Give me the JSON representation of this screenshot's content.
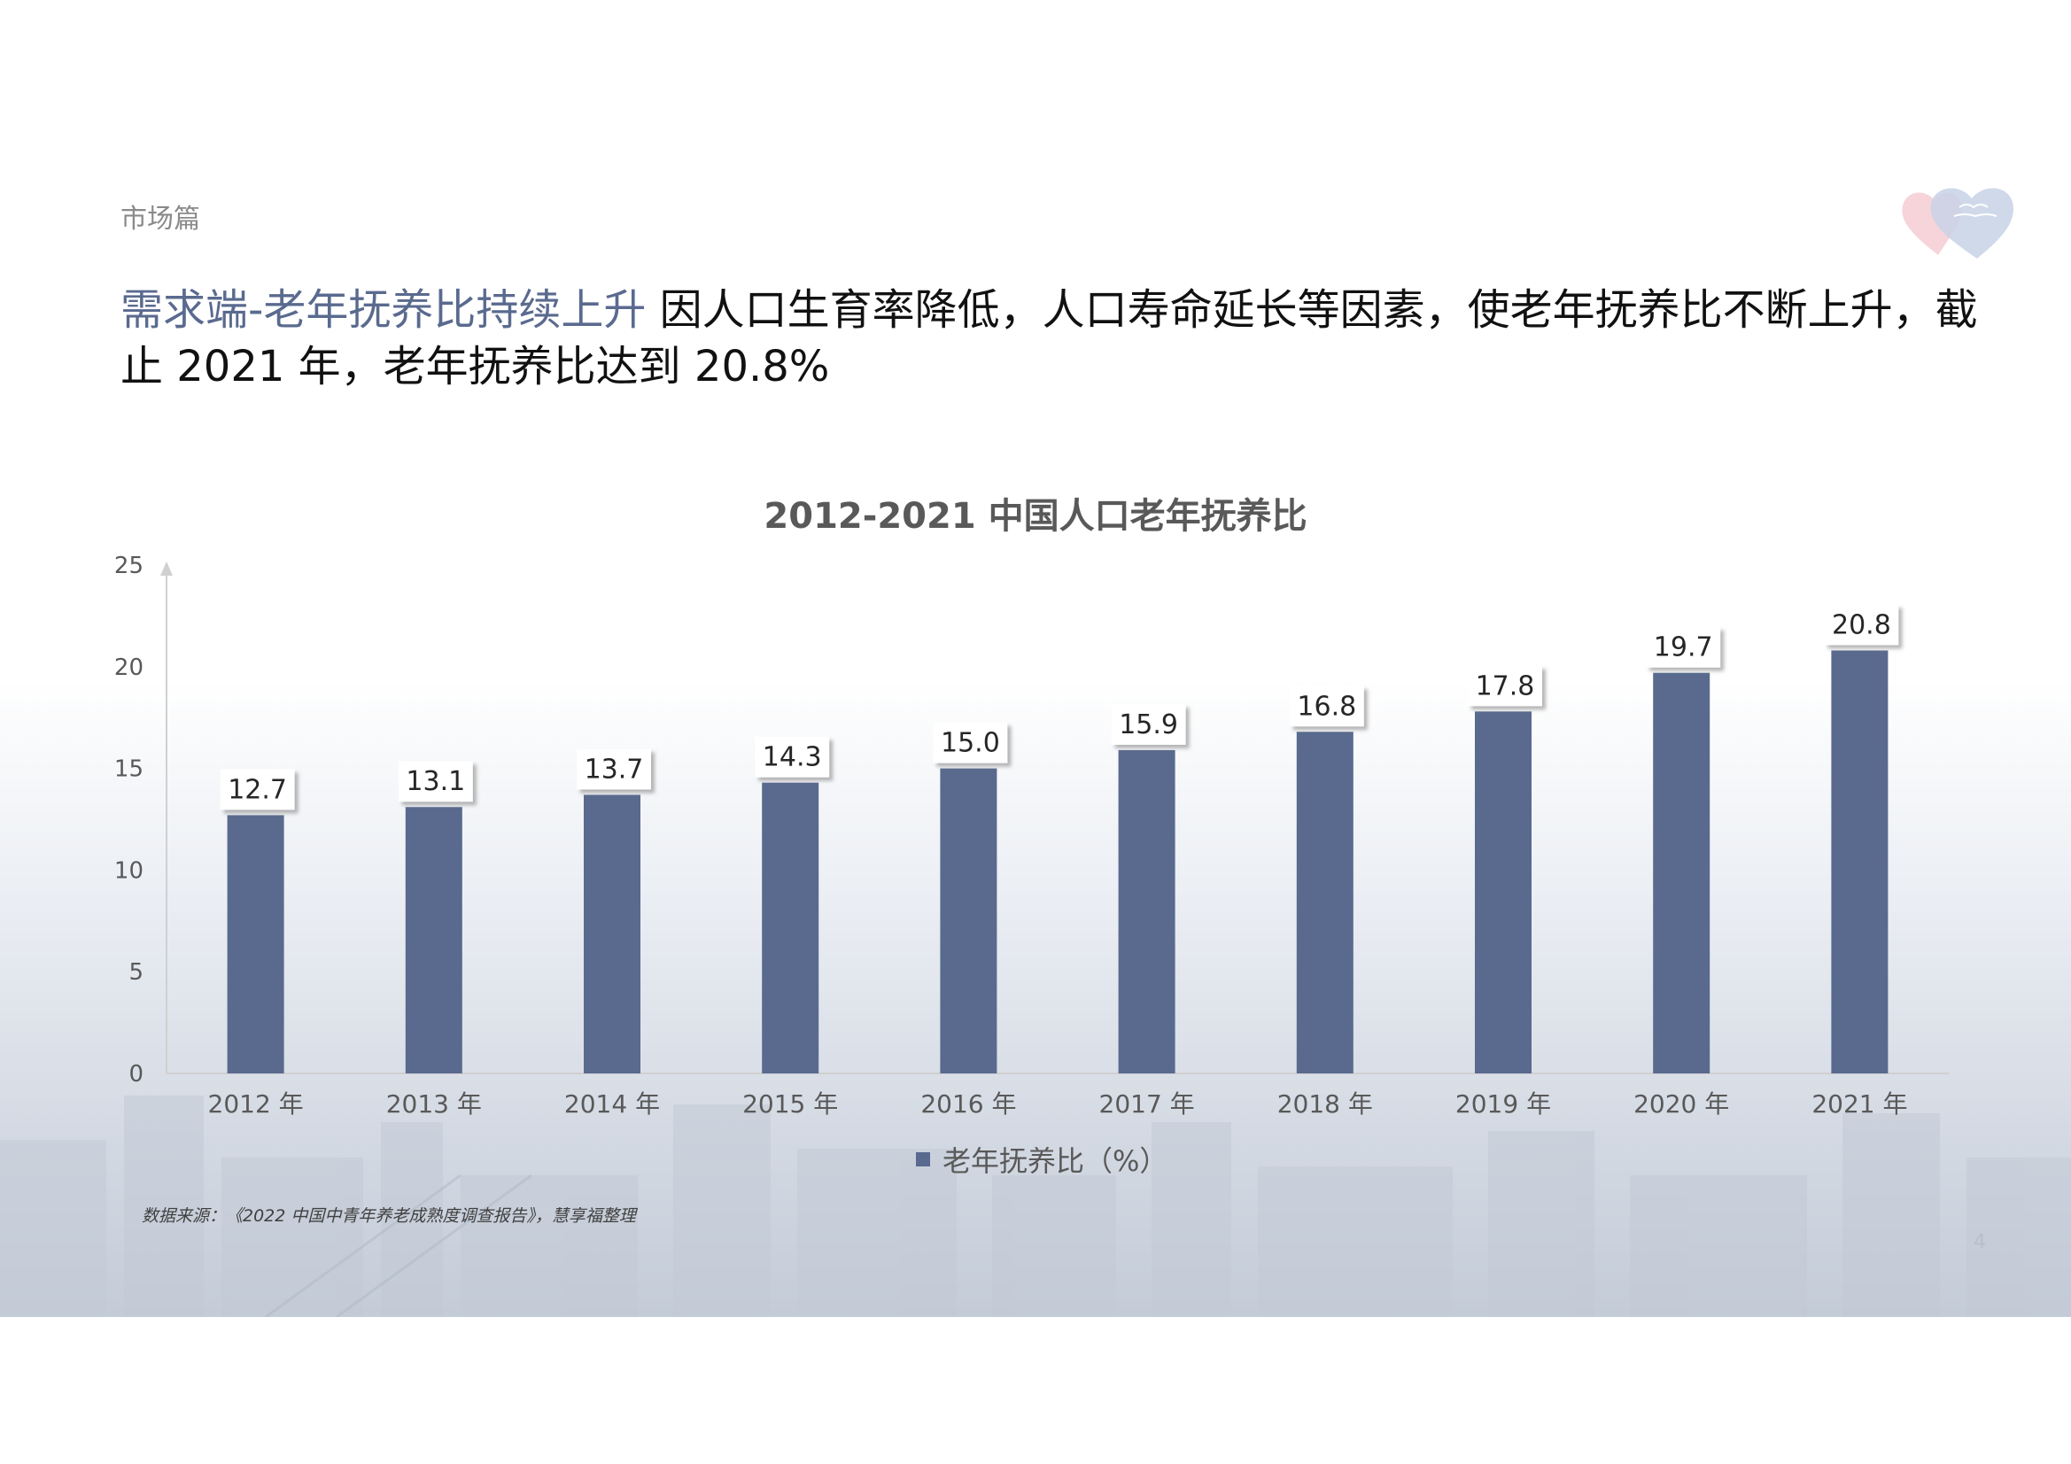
{
  "header": {
    "section_label": "市场篇",
    "headline_accent": "需求端-老年抚养比持续上升",
    "headline_text": " 因人口生育率降低，人口寿命延长等因素，使老年抚养比不断上升，截止 2021 年，老年抚养比达到 20.8%"
  },
  "footer": {
    "source": "数据来源：《2022 中国中青年养老成熟度调查报告》，慧享福整理",
    "page_number": "4"
  },
  "colors": {
    "bar": "#596a8e",
    "accent_text": "#5a6a8f",
    "axis_text": "#595959"
  },
  "chart_data": {
    "type": "bar",
    "title": "2012-2021 中国人口老年抚养比",
    "categories": [
      "2012 年",
      "2013 年",
      "2014 年",
      "2015 年",
      "2016 年",
      "2017 年",
      "2018 年",
      "2019 年",
      "2020 年",
      "2021 年"
    ],
    "series": [
      {
        "name": "老年抚养比（%）",
        "values": [
          12.7,
          13.1,
          13.7,
          14.3,
          15.0,
          15.9,
          16.8,
          17.8,
          19.7,
          20.8
        ],
        "labels": [
          "12.7",
          "13.1",
          "13.7",
          "14.3",
          "15.0",
          "15.9",
          "16.8",
          "17.8",
          "19.7",
          "20.8"
        ]
      }
    ],
    "ylim": [
      0,
      25
    ],
    "yticks": [
      "0",
      "5",
      "10",
      "15",
      "20",
      "25"
    ],
    "xlabel": "",
    "ylabel": "",
    "legend_position": "bottom",
    "grid": false
  }
}
